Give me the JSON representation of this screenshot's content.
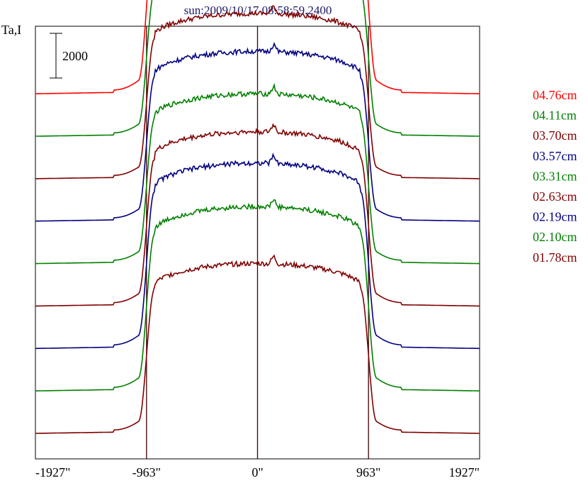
{
  "chart_data": {
    "type": "line",
    "title": "sun:2009/10/17 08:58:59.2400",
    "ylabel": "Ta,I",
    "scale_bar_label": "2000",
    "scale_bar_value": 2000,
    "xlim": [
      -1927,
      1927
    ],
    "x_ticks": [
      {
        "value": -1927,
        "label": "-1927\""
      },
      {
        "value": -963,
        "label": "-963\""
      },
      {
        "value": 0,
        "label": "0\""
      },
      {
        "value": 963,
        "label": "963\""
      },
      {
        "value": 1927,
        "label": "1927\""
      }
    ],
    "vertical_lines": [
      -963,
      0,
      963
    ],
    "grid": false,
    "legend_position": "right",
    "series_offset_step": 1900,
    "series": [
      {
        "name": "04.76cm",
        "color": "#ff0000",
        "quiet": 0,
        "disk": 8500
      },
      {
        "name": "04.11cm",
        "color": "#008000",
        "quiet": 0,
        "disk": 7650
      },
      {
        "name": "03.70cm",
        "color": "#800000",
        "quiet": 0,
        "disk": 7400
      },
      {
        "name": "03.57cm",
        "color": "#000080",
        "quiet": 0,
        "disk": 7600
      },
      {
        "name": "03.31cm",
        "color": "#008000",
        "quiet": 0,
        "disk": 7600
      },
      {
        "name": "02.63cm",
        "color": "#800000",
        "quiet": 0,
        "disk": 7800
      },
      {
        "name": "02.19cm",
        "color": "#000080",
        "quiet": 0,
        "disk": 8300
      },
      {
        "name": "02.10cm",
        "color": "#008000",
        "quiet": 0,
        "disk": 8250
      },
      {
        "name": "01.78cm",
        "color": "#800000",
        "quiet": 0,
        "disk": 7600
      }
    ]
  }
}
